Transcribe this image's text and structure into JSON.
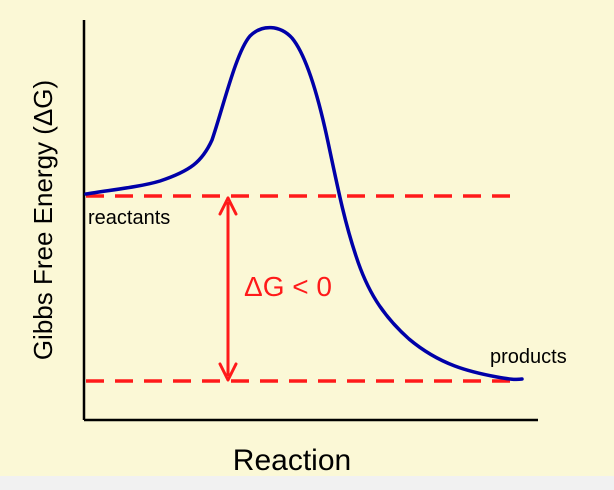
{
  "diagram": {
    "type": "energy-profile",
    "x_axis_label": "Reaction",
    "y_axis_label": "Gibbs Free Energy (ΔG)",
    "reactants_label": "reactants",
    "products_label": "products",
    "delta_label": "ΔG < 0",
    "colors": {
      "background": "#fbf8d6",
      "curve": "#0000a8",
      "dashed_lines": "#ff1a1a",
      "arrow": "#ff1a1a",
      "axes": "#000000",
      "text": "#000000",
      "delta_text": "#ff1a1a",
      "bottom_strip": "#f1f1f1"
    }
  }
}
